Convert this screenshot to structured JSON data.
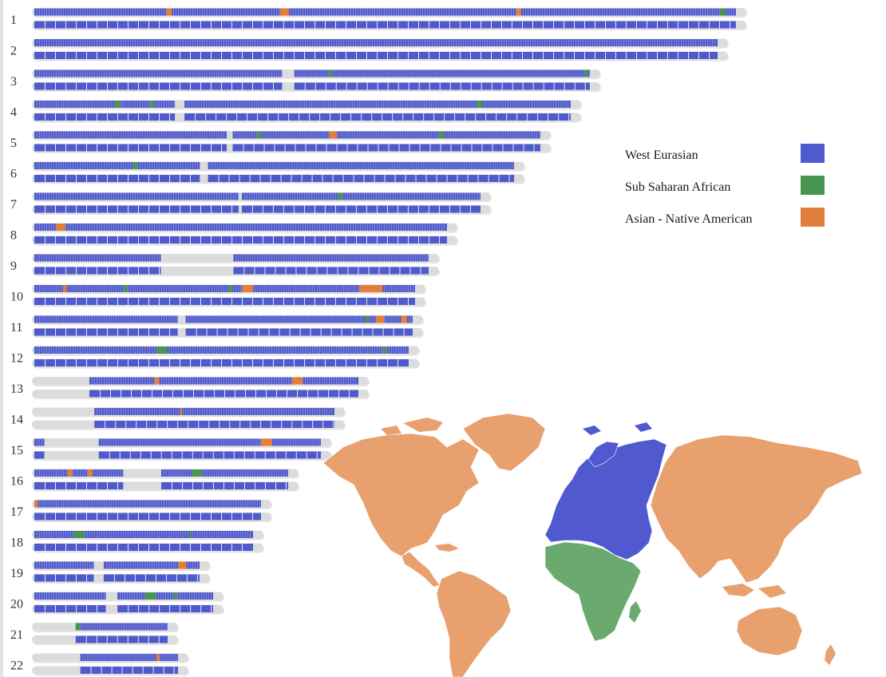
{
  "colors": {
    "west_eurasian": "#4f5acc",
    "sub_saharan_african": "#4a9650",
    "asian_native_american": "#e0803c",
    "unassigned": "#dcdcdc",
    "map_west_eurasian": "#5159cf",
    "map_sub_saharan_african": "#6aaa6e",
    "map_asian_native_american": "#e8a06e"
  },
  "legend": [
    {
      "label": "West Eurasian",
      "color_key": "west_eurasian"
    },
    {
      "label": "Sub Saharan African",
      "color_key": "sub_saharan_african"
    },
    {
      "label": "Asian - Native American",
      "color_key": "asian_native_american"
    }
  ],
  "chart_data": {
    "type": "chromosome_painting",
    "chromosomes": [
      {
        "label": "1",
        "gaps": [],
        "segments": [
          [
            0.188,
            0.196,
            "asian_native_american"
          ],
          [
            0.35,
            0.363,
            "asian_native_american"
          ],
          [
            0.687,
            0.694,
            "asian_native_american"
          ],
          [
            0.977,
            0.985,
            "sub_saharan_african"
          ]
        ]
      },
      {
        "label": "2",
        "gaps": [],
        "segments": []
      },
      {
        "label": "3",
        "gaps": [
          [
            0.446,
            0.468
          ]
        ],
        "segments": [
          [
            0.53,
            0.536,
            "sub_saharan_african"
          ],
          [
            0.99,
            0.996,
            "sub_saharan_african"
          ]
        ]
      },
      {
        "label": "4",
        "gaps": [
          [
            0.262,
            0.28
          ]
        ],
        "segments": [
          [
            0.15,
            0.16,
            "sub_saharan_african"
          ],
          [
            0.215,
            0.222,
            "sub_saharan_african"
          ],
          [
            0.825,
            0.835,
            "sub_saharan_african"
          ]
        ]
      },
      {
        "label": "5",
        "gaps": [
          [
            0.38,
            0.392
          ]
        ],
        "segments": [
          [
            0.44,
            0.448,
            "sub_saharan_african"
          ],
          [
            0.583,
            0.598,
            "asian_native_american"
          ],
          [
            0.8,
            0.81,
            "sub_saharan_african"
          ]
        ]
      },
      {
        "label": "6",
        "gaps": [
          [
            0.345,
            0.362
          ]
        ],
        "segments": [
          [
            0.205,
            0.215,
            "sub_saharan_african"
          ]
        ]
      },
      {
        "label": "7",
        "gaps": [
          [
            0.458,
            0.465
          ]
        ],
        "segments": [
          [
            0.68,
            0.69,
            "sub_saharan_african"
          ]
        ]
      },
      {
        "label": "8",
        "gaps": [],
        "segments": [
          [
            0.052,
            0.075,
            "asian_native_american"
          ]
        ]
      },
      {
        "label": "9",
        "gaps": [
          [
            0.321,
            0.505
          ]
        ],
        "segments": []
      },
      {
        "label": "10",
        "gaps": [],
        "segments": [
          [
            0.075,
            0.085,
            "asian_native_american"
          ],
          [
            0.235,
            0.245,
            "sub_saharan_african"
          ],
          [
            0.51,
            0.52,
            "sub_saharan_african"
          ],
          [
            0.545,
            0.575,
            "asian_native_american"
          ],
          [
            0.853,
            0.915,
            "asian_native_american"
          ]
        ]
      },
      {
        "label": "11",
        "gaps": [
          [
            0.379,
            0.4
          ]
        ],
        "segments": [
          [
            0.875,
            0.885,
            "sub_saharan_african"
          ],
          [
            0.903,
            0.925,
            "asian_native_american"
          ],
          [
            0.97,
            0.985,
            "asian_native_american"
          ]
        ]
      },
      {
        "label": "12",
        "gaps": [],
        "segments": [
          [
            0.327,
            0.355,
            "sub_saharan_african"
          ],
          [
            0.93,
            0.94,
            "sub_saharan_african"
          ]
        ]
      },
      {
        "label": "13",
        "gaps": [
          [
            0.0,
            0.17
          ]
        ],
        "segments": [
          [
            0.37,
            0.385,
            "asian_native_american"
          ],
          [
            0.795,
            0.828,
            "asian_native_american"
          ]
        ]
      },
      {
        "label": "14",
        "gaps": [
          [
            0.0,
            0.2
          ]
        ],
        "segments": [
          [
            0.485,
            0.492,
            "asian_native_american"
          ]
        ]
      },
      {
        "label": "15",
        "gaps": [
          [
            0.035,
            0.225
          ]
        ],
        "segments": [
          [
            0.79,
            0.83,
            "asian_native_american"
          ]
        ]
      },
      {
        "label": "16",
        "gaps": [
          [
            0.35,
            0.5
          ]
        ],
        "segments": [
          [
            0.13,
            0.15,
            "asian_native_american"
          ],
          [
            0.21,
            0.23,
            "asian_native_american"
          ],
          [
            0.62,
            0.66,
            "sub_saharan_african"
          ]
        ]
      },
      {
        "label": "17",
        "gaps": [],
        "segments": [
          [
            0.0,
            0.015,
            "asian_native_american"
          ]
        ]
      },
      {
        "label": "18",
        "gaps": [],
        "segments": [
          [
            0.18,
            0.23,
            "sub_saharan_african"
          ],
          [
            0.71,
            0.72,
            "sub_saharan_african"
          ]
        ]
      },
      {
        "label": "19",
        "gaps": [
          [
            0.36,
            0.42
          ]
        ],
        "segments": [
          [
            0.87,
            0.92,
            "asian_native_american"
          ]
        ]
      },
      {
        "label": "20",
        "gaps": [
          [
            0.4,
            0.465
          ]
        ],
        "segments": [
          [
            0.62,
            0.68,
            "sub_saharan_african"
          ],
          [
            0.78,
            0.8,
            "sub_saharan_african"
          ]
        ]
      },
      {
        "label": "21",
        "gaps": [
          [
            0.0,
            0.31
          ]
        ],
        "segments": [
          [
            0.31,
            0.345,
            "sub_saharan_african"
          ]
        ]
      },
      {
        "label": "22",
        "gaps": [
          [
            0.0,
            0.32
          ]
        ],
        "segments": [
          [
            0.85,
            0.87,
            "asian_native_american"
          ]
        ]
      }
    ]
  }
}
